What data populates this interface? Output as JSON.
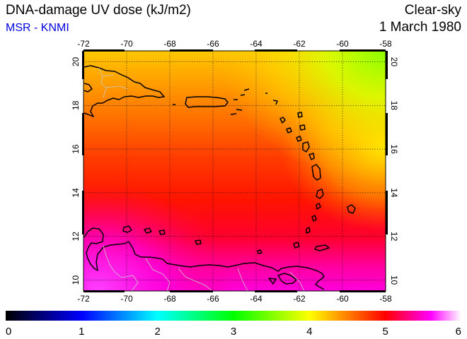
{
  "header": {
    "title": "DNA-damage UV dose (kJ/m2)",
    "source": "MSR - KNMI",
    "sky_condition": "Clear-sky",
    "date": "1 March 1980"
  },
  "colors": {
    "source_text": "#0000dd",
    "coastline": "#000000",
    "border": "#c8c8c8",
    "gridline": "#000000"
  },
  "map": {
    "region": "Caribbean (Hispaniola, Puerto Rico, Lesser Antilles, Venezuela coast)",
    "lon_range": [
      -72,
      -58
    ],
    "lat_range": [
      9.5,
      20.5
    ],
    "lon_ticks": [
      "-72",
      "-70",
      "-68",
      "-66",
      "-64",
      "-62",
      "-60",
      "-58"
    ],
    "lat_ticks": [
      "10",
      "12",
      "14",
      "16",
      "18",
      "20"
    ],
    "gridlines": true
  },
  "colorbar": {
    "min": 0,
    "max": 6,
    "labels": [
      "0",
      "1",
      "2",
      "3",
      "4",
      "5",
      "6"
    ],
    "stops": [
      "#000000",
      "#0000ff",
      "#00ffff",
      "#00ff00",
      "#ffff00",
      "#ff0000",
      "#ff00ff",
      "#ffffff"
    ]
  }
}
